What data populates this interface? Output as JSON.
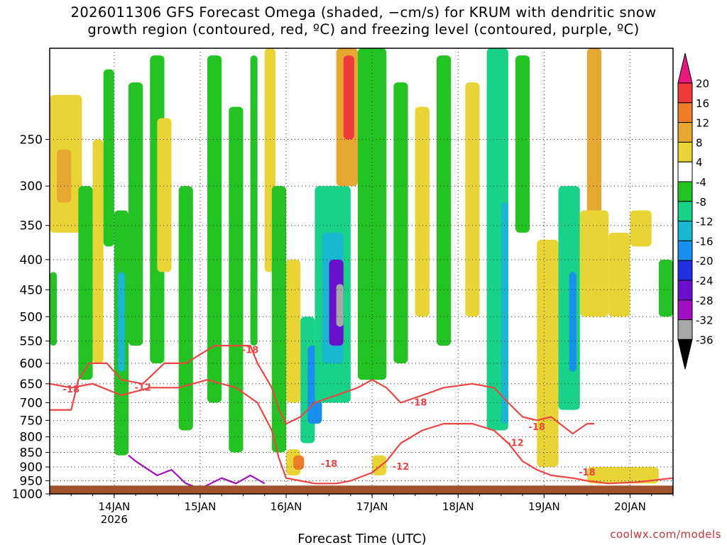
{
  "title": {
    "line1": "2026011306 GFS Forecast Omega (shaded, −cm/s) for KRUM with dendritic snow",
    "line2": "growth region (contoured, red, ºC) and freezing level (contoured, purple, ºC)"
  },
  "credit": "coolwx.com/models",
  "chart_data": {
    "type": "heatmap",
    "title": "2026011306 GFS Forecast Omega (shaded, −cm/s) for KRUM with dendritic snow growth region (contoured, red, ºC) and freezing level (contoured, purple, ºC)",
    "xlabel": "Forecast Time (UTC)",
    "ylabel": "",
    "x_ticks": [
      {
        "label": "14JAN",
        "sublabel": "2026",
        "hours_from_init": 18
      },
      {
        "label": "15JAN",
        "sublabel": "",
        "hours_from_init": 42
      },
      {
        "label": "16JAN",
        "sublabel": "",
        "hours_from_init": 66
      },
      {
        "label": "17JAN",
        "sublabel": "",
        "hours_from_init": 90
      },
      {
        "label": "18JAN",
        "sublabel": "",
        "hours_from_init": 114
      },
      {
        "label": "19JAN",
        "sublabel": "",
        "hours_from_init": 138
      },
      {
        "label": "20JAN",
        "sublabel": "",
        "hours_from_init": 162
      }
    ],
    "xlim": [
      0,
      174
    ],
    "y_ticks": [
      250,
      300,
      350,
      400,
      450,
      500,
      550,
      600,
      650,
      700,
      750,
      800,
      850,
      900,
      950,
      1000
    ],
    "ylim": [
      1000,
      175
    ],
    "y_scale": "log-pressure",
    "grid": true,
    "colorbar": {
      "labels": [
        "20",
        "16",
        "12",
        "8",
        "4",
        "-4",
        "-8",
        "-12",
        "-16",
        "-20",
        "-24",
        "-28",
        "-32",
        "-36"
      ],
      "colors": [
        "#e8187f",
        "#ee3a3a",
        "#ee7c28",
        "#e6a830",
        "#e8d535",
        "#ffffff",
        "#22c322",
        "#18d288",
        "#18b8d0",
        "#1890ee",
        "#2030e0",
        "#6a10cc",
        "#a010c0",
        "#a8a8a8",
        "#000000"
      ]
    },
    "ground_color": "#a0522d",
    "omega_cells": [
      {
        "t0": 0,
        "t1": 9,
        "p0": 210,
        "p1": 360,
        "v": 6
      },
      {
        "t0": 2,
        "t1": 6,
        "p0": 260,
        "p1": 320,
        "v": 10
      },
      {
        "t0": 0,
        "t1": 2,
        "p0": 420,
        "p1": 560,
        "v": -7
      },
      {
        "t0": 8,
        "t1": 12,
        "p0": 300,
        "p1": 640,
        "v": -7
      },
      {
        "t0": 12,
        "t1": 15,
        "p0": 250,
        "p1": 600,
        "v": 5
      },
      {
        "t0": 15,
        "t1": 18,
        "p0": 190,
        "p1": 380,
        "v": -6
      },
      {
        "t0": 18,
        "t1": 22,
        "p0": 330,
        "p1": 860,
        "v": -7
      },
      {
        "t0": 19,
        "t1": 21,
        "p0": 420,
        "p1": 620,
        "v": -14
      },
      {
        "t0": 22,
        "t1": 26,
        "p0": 200,
        "p1": 560,
        "v": -7
      },
      {
        "t0": 28,
        "t1": 32,
        "p0": 180,
        "p1": 600,
        "v": -6
      },
      {
        "t0": 30,
        "t1": 34,
        "p0": 230,
        "p1": 420,
        "v": 5
      },
      {
        "t0": 36,
        "t1": 40,
        "p0": 300,
        "p1": 780,
        "v": -7
      },
      {
        "t0": 44,
        "t1": 48,
        "p0": 180,
        "p1": 700,
        "v": -7
      },
      {
        "t0": 50,
        "t1": 54,
        "p0": 220,
        "p1": 850,
        "v": -7
      },
      {
        "t0": 56,
        "t1": 58,
        "p0": 180,
        "p1": 560,
        "v": -6
      },
      {
        "t0": 60,
        "t1": 63,
        "p0": 175,
        "p1": 420,
        "v": 5
      },
      {
        "t0": 62,
        "t1": 66,
        "p0": 300,
        "p1": 850,
        "v": -6
      },
      {
        "t0": 66,
        "t1": 70,
        "p0": 400,
        "p1": 700,
        "v": 5
      },
      {
        "t0": 66,
        "t1": 70,
        "p0": 840,
        "p1": 930,
        "v": 6
      },
      {
        "t0": 68,
        "t1": 71,
        "p0": 860,
        "p1": 910,
        "v": 12
      },
      {
        "t0": 70,
        "t1": 74,
        "p0": 500,
        "p1": 820,
        "v": -10
      },
      {
        "t0": 72,
        "t1": 76,
        "p0": 560,
        "p1": 760,
        "v": -18
      },
      {
        "t0": 74,
        "t1": 84,
        "p0": 300,
        "p1": 700,
        "v": -9
      },
      {
        "t0": 76,
        "t1": 82,
        "p0": 360,
        "p1": 600,
        "v": -14
      },
      {
        "t0": 78,
        "t1": 82,
        "p0": 400,
        "p1": 560,
        "v": -26
      },
      {
        "t0": 80,
        "t1": 82,
        "p0": 440,
        "p1": 520,
        "v": -33
      },
      {
        "t0": 80,
        "t1": 86,
        "p0": 175,
        "p1": 300,
        "v": 8
      },
      {
        "t0": 82,
        "t1": 85,
        "p0": 180,
        "p1": 250,
        "v": 18
      },
      {
        "t0": 86,
        "t1": 94,
        "p0": 175,
        "p1": 640,
        "v": -7
      },
      {
        "t0": 90,
        "t1": 94,
        "p0": 860,
        "p1": 930,
        "v": 6
      },
      {
        "t0": 96,
        "t1": 100,
        "p0": 200,
        "p1": 600,
        "v": -6
      },
      {
        "t0": 102,
        "t1": 106,
        "p0": 220,
        "p1": 500,
        "v": 5
      },
      {
        "t0": 108,
        "t1": 112,
        "p0": 180,
        "p1": 560,
        "v": -6
      },
      {
        "t0": 116,
        "t1": 120,
        "p0": 200,
        "p1": 500,
        "v": 5
      },
      {
        "t0": 122,
        "t1": 128,
        "p0": 175,
        "p1": 780,
        "v": -8
      },
      {
        "t0": 126,
        "t1": 128,
        "p0": 320,
        "p1": 760,
        "v": -15
      },
      {
        "t0": 130,
        "t1": 134,
        "p0": 180,
        "p1": 360,
        "v": -6
      },
      {
        "t0": 136,
        "t1": 142,
        "p0": 370,
        "p1": 900,
        "v": 5
      },
      {
        "t0": 142,
        "t1": 148,
        "p0": 300,
        "p1": 720,
        "v": -8
      },
      {
        "t0": 145,
        "t1": 147,
        "p0": 420,
        "p1": 620,
        "v": -18
      },
      {
        "t0": 150,
        "t1": 154,
        "p0": 175,
        "p1": 360,
        "v": 10
      },
      {
        "t0": 148,
        "t1": 156,
        "p0": 330,
        "p1": 500,
        "v": 5
      },
      {
        "t0": 156,
        "t1": 162,
        "p0": 360,
        "p1": 500,
        "v": 6
      },
      {
        "t0": 162,
        "t1": 168,
        "p0": 330,
        "p1": 380,
        "v": 5
      },
      {
        "t0": 170,
        "t1": 174,
        "p0": 400,
        "p1": 500,
        "v": -6
      },
      {
        "t0": 150,
        "t1": 170,
        "p0": 900,
        "p1": 960,
        "v": 5
      }
    ],
    "contours": [
      {
        "name": "dendritic-top",
        "color": "#ee4444",
        "label": "-18",
        "points": [
          [
            0,
            720
          ],
          [
            6,
            720
          ],
          [
            8,
            640
          ],
          [
            11,
            600
          ],
          [
            16,
            600
          ],
          [
            20,
            640
          ],
          [
            26,
            650
          ],
          [
            32,
            600
          ],
          [
            38,
            600
          ],
          [
            46,
            560
          ],
          [
            52,
            560
          ],
          [
            56,
            560
          ],
          [
            58,
            600
          ],
          [
            62,
            660
          ],
          [
            64,
            720
          ],
          [
            66,
            760
          ],
          [
            70,
            740
          ],
          [
            74,
            700
          ],
          [
            80,
            680
          ],
          [
            86,
            660
          ],
          [
            90,
            640
          ],
          [
            94,
            660
          ],
          [
            98,
            700
          ],
          [
            104,
            680
          ],
          [
            110,
            660
          ],
          [
            118,
            650
          ],
          [
            124,
            660
          ],
          [
            128,
            700
          ],
          [
            132,
            740
          ],
          [
            136,
            750
          ],
          [
            140,
            740
          ],
          [
            146,
            790
          ],
          [
            150,
            760
          ],
          [
            152,
            760
          ]
        ]
      },
      {
        "name": "dendritic-bottom",
        "color": "#ee4444",
        "label": "-12",
        "points": [
          [
            0,
            650
          ],
          [
            6,
            660
          ],
          [
            12,
            650
          ],
          [
            20,
            680
          ],
          [
            28,
            660
          ],
          [
            36,
            660
          ],
          [
            44,
            640
          ],
          [
            52,
            660
          ],
          [
            58,
            700
          ],
          [
            62,
            780
          ],
          [
            64,
            870
          ],
          [
            66,
            940
          ],
          [
            70,
            950
          ],
          [
            74,
            960
          ],
          [
            80,
            960
          ],
          [
            84,
            950
          ],
          [
            90,
            920
          ],
          [
            94,
            880
          ],
          [
            98,
            820
          ],
          [
            104,
            780
          ],
          [
            110,
            760
          ],
          [
            118,
            760
          ],
          [
            124,
            780
          ],
          [
            128,
            820
          ],
          [
            132,
            880
          ],
          [
            136,
            910
          ],
          [
            140,
            930
          ],
          [
            146,
            940
          ],
          [
            150,
            950
          ],
          [
            156,
            960
          ],
          [
            164,
            955
          ],
          [
            174,
            940
          ]
        ]
      },
      {
        "name": "freezing-level",
        "color": "#a010c0",
        "label": "",
        "points": [
          [
            22,
            860
          ],
          [
            24,
            880
          ],
          [
            30,
            930
          ],
          [
            34,
            910
          ],
          [
            38,
            960
          ],
          [
            42,
            980
          ],
          [
            48,
            940
          ],
          [
            52,
            960
          ],
          [
            56,
            930
          ],
          [
            60,
            960
          ]
        ]
      }
    ],
    "contour_labels": [
      {
        "text": "-18",
        "t": 6,
        "p": 665
      },
      {
        "text": "-12",
        "t": 26,
        "p": 660
      },
      {
        "text": "-18",
        "t": 56,
        "p": 570
      },
      {
        "text": "-18",
        "t": 78,
        "p": 890
      },
      {
        "text": "-12",
        "t": 98,
        "p": 900
      },
      {
        "text": "-18",
        "t": 103,
        "p": 700
      },
      {
        "text": "-12",
        "t": 130,
        "p": 820
      },
      {
        "text": "-18",
        "t": 136,
        "p": 770
      },
      {
        "text": "-18",
        "t": 150,
        "p": 920
      }
    ]
  }
}
